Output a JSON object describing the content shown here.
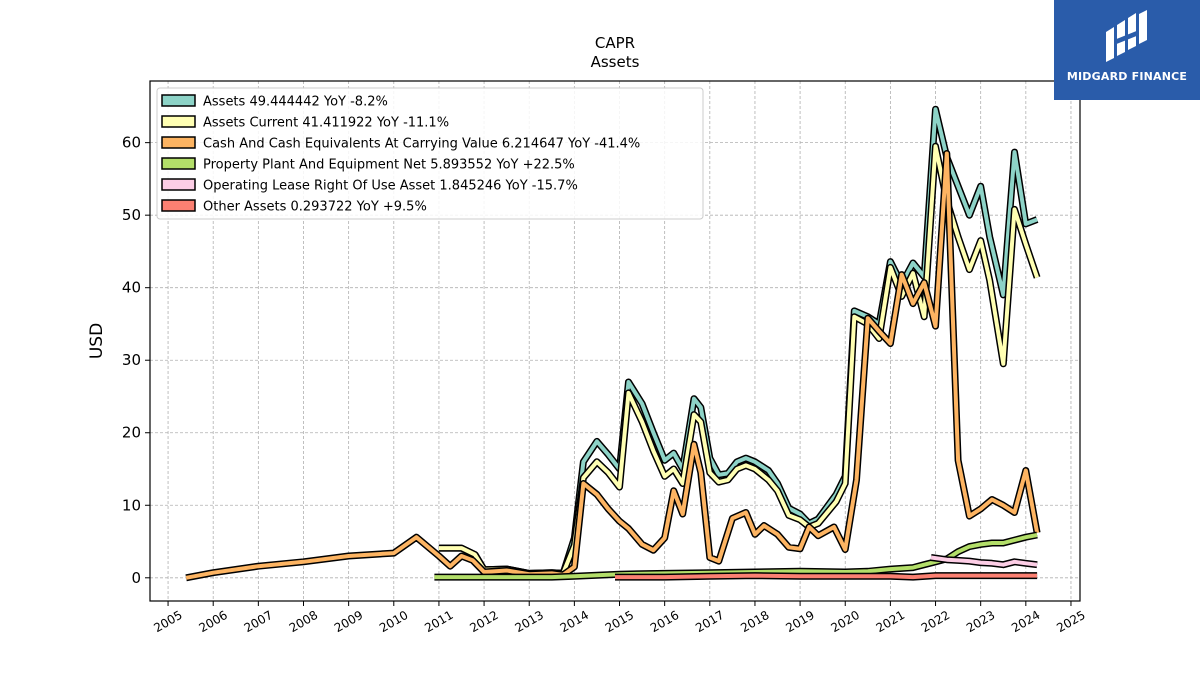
{
  "chart_data": {
    "type": "line",
    "title": "CAPR",
    "subtitle": "Assets",
    "xlabel": "",
    "ylabel": "USD",
    "xlim": [
      2004.6,
      2025.2
    ],
    "ylim": [
      -3.2,
      68.5
    ],
    "x_ticks": [
      2005,
      2006,
      2007,
      2008,
      2009,
      2010,
      2011,
      2012,
      2013,
      2014,
      2015,
      2016,
      2017,
      2018,
      2019,
      2020,
      2021,
      2022,
      2023,
      2024,
      2025
    ],
    "y_ticks": [
      0,
      10,
      20,
      30,
      40,
      50,
      60
    ],
    "grid": true,
    "legend_position": "top-left",
    "series": [
      {
        "name": "Assets",
        "legend": "Assets  49.444442 YoY -8.2%",
        "color": "#8dd3c7",
        "points": [
          [
            2011.0,
            4.1
          ],
          [
            2011.5,
            4.1
          ],
          [
            2011.8,
            3.2
          ],
          [
            2012.0,
            1.1
          ],
          [
            2012.5,
            1.2
          ],
          [
            2013.0,
            0.6
          ],
          [
            2013.5,
            0.7
          ],
          [
            2013.75,
            0.6
          ],
          [
            2014.0,
            5.5
          ],
          [
            2014.2,
            16.0
          ],
          [
            2014.5,
            18.8
          ],
          [
            2014.75,
            17.0
          ],
          [
            2015.0,
            15.0
          ],
          [
            2015.2,
            27.0
          ],
          [
            2015.5,
            24.0
          ],
          [
            2015.75,
            20.0
          ],
          [
            2016.0,
            16.2
          ],
          [
            2016.2,
            17.2
          ],
          [
            2016.4,
            15.0
          ],
          [
            2016.65,
            24.7
          ],
          [
            2016.8,
            23.5
          ],
          [
            2017.0,
            16.5
          ],
          [
            2017.2,
            14.2
          ],
          [
            2017.4,
            14.4
          ],
          [
            2017.6,
            16.0
          ],
          [
            2017.8,
            16.5
          ],
          [
            2018.0,
            16.0
          ],
          [
            2018.3,
            14.8
          ],
          [
            2018.5,
            13.0
          ],
          [
            2018.75,
            9.6
          ],
          [
            2019.0,
            8.8
          ],
          [
            2019.2,
            7.5
          ],
          [
            2019.4,
            8.1
          ],
          [
            2019.8,
            11.5
          ],
          [
            2020.0,
            14.0
          ],
          [
            2020.2,
            36.8
          ],
          [
            2020.5,
            36.0
          ],
          [
            2020.75,
            35.0
          ],
          [
            2021.0,
            43.6
          ],
          [
            2021.25,
            40.5
          ],
          [
            2021.5,
            43.4
          ],
          [
            2021.75,
            41.5
          ],
          [
            2022.0,
            64.6
          ],
          [
            2022.25,
            58.0
          ],
          [
            2022.5,
            54.0
          ],
          [
            2022.75,
            50.0
          ],
          [
            2023.0,
            54.0
          ],
          [
            2023.2,
            47.0
          ],
          [
            2023.5,
            39.0
          ],
          [
            2023.75,
            58.7
          ],
          [
            2024.0,
            48.8
          ],
          [
            2024.25,
            49.4
          ]
        ]
      },
      {
        "name": "Assets Current",
        "legend": "Assets Current  41.411922 YoY -11.1%",
        "color": "#ffffb3",
        "points": [
          [
            2011.0,
            4.1
          ],
          [
            2011.5,
            4.1
          ],
          [
            2011.8,
            3.2
          ],
          [
            2012.0,
            1.1
          ],
          [
            2012.5,
            1.2
          ],
          [
            2013.0,
            0.6
          ],
          [
            2013.5,
            0.7
          ],
          [
            2013.75,
            0.6
          ],
          [
            2014.0,
            4.5
          ],
          [
            2014.2,
            13.8
          ],
          [
            2014.5,
            16.0
          ],
          [
            2014.75,
            14.5
          ],
          [
            2015.0,
            12.5
          ],
          [
            2015.2,
            25.5
          ],
          [
            2015.5,
            21.5
          ],
          [
            2015.75,
            17.5
          ],
          [
            2016.0,
            14.0
          ],
          [
            2016.2,
            15.0
          ],
          [
            2016.4,
            13.0
          ],
          [
            2016.65,
            22.5
          ],
          [
            2016.8,
            21.5
          ],
          [
            2017.0,
            14.5
          ],
          [
            2017.2,
            13.2
          ],
          [
            2017.4,
            13.5
          ],
          [
            2017.6,
            15.0
          ],
          [
            2017.8,
            15.5
          ],
          [
            2018.0,
            15.0
          ],
          [
            2018.3,
            13.5
          ],
          [
            2018.5,
            12.0
          ],
          [
            2018.75,
            8.6
          ],
          [
            2019.0,
            8.0
          ],
          [
            2019.2,
            7.0
          ],
          [
            2019.4,
            7.5
          ],
          [
            2019.8,
            10.5
          ],
          [
            2020.0,
            13.0
          ],
          [
            2020.2,
            36.0
          ],
          [
            2020.5,
            35.0
          ],
          [
            2020.75,
            33.0
          ],
          [
            2021.0,
            42.8
          ],
          [
            2021.25,
            38.8
          ],
          [
            2021.5,
            42.0
          ],
          [
            2021.75,
            36.0
          ],
          [
            2022.0,
            59.5
          ],
          [
            2022.25,
            52.0
          ],
          [
            2022.5,
            47.0
          ],
          [
            2022.75,
            42.5
          ],
          [
            2023.0,
            46.5
          ],
          [
            2023.2,
            41.0
          ],
          [
            2023.5,
            29.5
          ],
          [
            2023.75,
            50.8
          ],
          [
            2024.0,
            46.0
          ],
          [
            2024.25,
            41.4
          ]
        ]
      },
      {
        "name": "Cash And Cash Equivalents At Carrying Value",
        "legend": "Cash And Cash Equivalents At Carrying Value  6.214647 YoY -41.4%",
        "color": "#fdb462",
        "points": [
          [
            2005.4,
            0.0
          ],
          [
            2006.0,
            0.7
          ],
          [
            2007.0,
            1.6
          ],
          [
            2008.0,
            2.2
          ],
          [
            2009.0,
            3.0
          ],
          [
            2010.0,
            3.4
          ],
          [
            2010.5,
            5.6
          ],
          [
            2011.0,
            3.0
          ],
          [
            2011.25,
            1.6
          ],
          [
            2011.5,
            3.0
          ],
          [
            2011.75,
            2.4
          ],
          [
            2012.0,
            0.8
          ],
          [
            2012.5,
            1.0
          ],
          [
            2013.0,
            0.5
          ],
          [
            2013.5,
            0.6
          ],
          [
            2013.75,
            0.4
          ],
          [
            2014.0,
            1.5
          ],
          [
            2014.2,
            13.0
          ],
          [
            2014.5,
            11.5
          ],
          [
            2014.75,
            9.5
          ],
          [
            2015.0,
            7.8
          ],
          [
            2015.2,
            6.8
          ],
          [
            2015.5,
            4.6
          ],
          [
            2015.75,
            3.8
          ],
          [
            2016.0,
            5.5
          ],
          [
            2016.2,
            12.0
          ],
          [
            2016.4,
            8.8
          ],
          [
            2016.65,
            18.4
          ],
          [
            2016.8,
            14.5
          ],
          [
            2017.0,
            2.8
          ],
          [
            2017.2,
            2.3
          ],
          [
            2017.5,
            8.2
          ],
          [
            2017.8,
            9.0
          ],
          [
            2018.0,
            6.0
          ],
          [
            2018.2,
            7.2
          ],
          [
            2018.5,
            6.0
          ],
          [
            2018.75,
            4.2
          ],
          [
            2019.0,
            4.0
          ],
          [
            2019.2,
            7.0
          ],
          [
            2019.4,
            5.8
          ],
          [
            2019.75,
            7.0
          ],
          [
            2020.0,
            3.9
          ],
          [
            2020.25,
            13.5
          ],
          [
            2020.5,
            35.8
          ],
          [
            2020.75,
            34.0
          ],
          [
            2021.0,
            32.3
          ],
          [
            2021.25,
            41.8
          ],
          [
            2021.5,
            37.8
          ],
          [
            2021.75,
            40.7
          ],
          [
            2022.0,
            34.7
          ],
          [
            2022.25,
            58.5
          ],
          [
            2022.5,
            16.2
          ],
          [
            2022.75,
            8.5
          ],
          [
            2023.0,
            9.5
          ],
          [
            2023.25,
            10.8
          ],
          [
            2023.5,
            10.0
          ],
          [
            2023.75,
            9.0
          ],
          [
            2024.0,
            14.8
          ],
          [
            2024.25,
            6.2
          ]
        ]
      },
      {
        "name": "Property Plant And Equipment Net",
        "legend": "Property Plant And Equipment Net  5.893552 YoY +22.5%",
        "color": "#b3de69",
        "points": [
          [
            2010.9,
            0.1
          ],
          [
            2011.5,
            0.1
          ],
          [
            2012.5,
            0.1
          ],
          [
            2013.5,
            0.1
          ],
          [
            2014.0,
            0.2
          ],
          [
            2015.0,
            0.5
          ],
          [
            2016.0,
            0.6
          ],
          [
            2017.0,
            0.7
          ],
          [
            2018.0,
            0.8
          ],
          [
            2019.0,
            0.9
          ],
          [
            2020.0,
            0.8
          ],
          [
            2020.5,
            0.9
          ],
          [
            2021.0,
            1.2
          ],
          [
            2021.5,
            1.4
          ],
          [
            2021.75,
            1.8
          ],
          [
            2022.0,
            2.2
          ],
          [
            2022.25,
            2.6
          ],
          [
            2022.5,
            3.6
          ],
          [
            2022.75,
            4.3
          ],
          [
            2023.0,
            4.6
          ],
          [
            2023.25,
            4.8
          ],
          [
            2023.5,
            4.8
          ],
          [
            2023.75,
            5.2
          ],
          [
            2024.0,
            5.6
          ],
          [
            2024.25,
            5.9
          ]
        ]
      },
      {
        "name": "Operating Lease Right Of Use Asset",
        "legend": "Operating Lease Right Of Use Asset  1.845246 YoY -15.7%",
        "color": "#fccde5",
        "points": [
          [
            2021.9,
            2.8
          ],
          [
            2022.25,
            2.5
          ],
          [
            2022.5,
            2.4
          ],
          [
            2022.75,
            2.3
          ],
          [
            2023.0,
            2.1
          ],
          [
            2023.25,
            2.0
          ],
          [
            2023.5,
            1.8
          ],
          [
            2023.75,
            2.2
          ],
          [
            2024.0,
            2.0
          ],
          [
            2024.25,
            1.8
          ]
        ]
      },
      {
        "name": "Other Assets",
        "legend": "Other Assets  0.293722 YoY +9.5%",
        "color": "#fb8072",
        "points": [
          [
            2014.9,
            0.1
          ],
          [
            2016.0,
            0.1
          ],
          [
            2017.0,
            0.2
          ],
          [
            2018.0,
            0.3
          ],
          [
            2019.0,
            0.2
          ],
          [
            2020.0,
            0.2
          ],
          [
            2021.0,
            0.2
          ],
          [
            2021.5,
            0.1
          ],
          [
            2022.0,
            0.3
          ],
          [
            2023.0,
            0.3
          ],
          [
            2024.25,
            0.3
          ]
        ]
      }
    ]
  },
  "logo": {
    "text": "MIDGARD FINANCE",
    "background": "#2a5caa"
  }
}
